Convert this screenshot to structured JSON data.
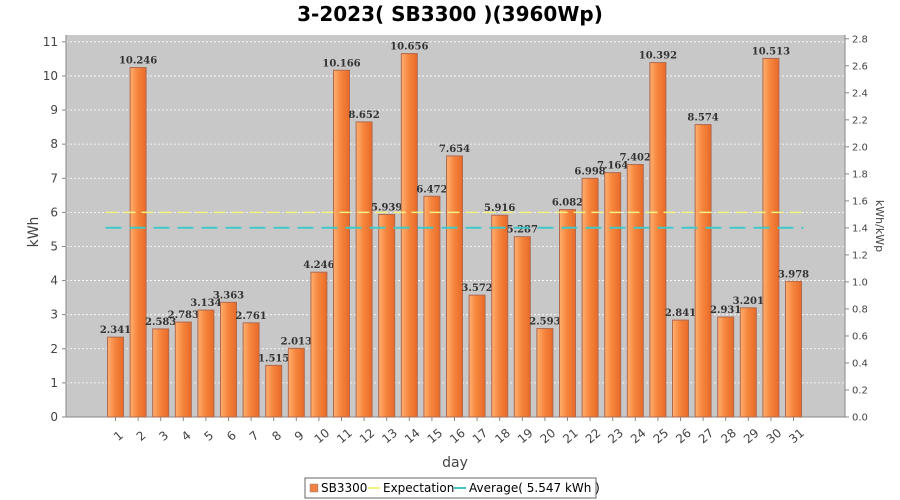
{
  "chart_data": {
    "type": "bar",
    "title": "3-2023( SB3300 )(3960Wp)",
    "xlabel": "day",
    "ylabel": "kWh",
    "y2label": "kWh/kWp",
    "ylim": [
      0,
      11.2
    ],
    "y2lim": [
      0,
      2.828
    ],
    "yticks": [
      "0",
      "1",
      "2",
      "3",
      "4",
      "5",
      "6",
      "7",
      "8",
      "9",
      "10",
      "11"
    ],
    "y2ticks": [
      "0.0",
      "0.2",
      "0.4",
      "0.6",
      "0.8",
      "1.0",
      "1.2",
      "1.4",
      "1.6",
      "1.8",
      "2.0",
      "2.2",
      "2.4",
      "2.6",
      "2.8"
    ],
    "grid": true,
    "categories": [
      "1",
      "2",
      "3",
      "4",
      "5",
      "6",
      "7",
      "8",
      "9",
      "10",
      "11",
      "12",
      "13",
      "14",
      "15",
      "16",
      "17",
      "18",
      "19",
      "20",
      "21",
      "22",
      "23",
      "24",
      "25",
      "26",
      "27",
      "28",
      "29",
      "30",
      "31"
    ],
    "series": [
      {
        "name": "SB3300",
        "type": "bar",
        "color": "#f08040",
        "values": [
          2.341,
          10.246,
          2.583,
          2.783,
          3.134,
          3.363,
          2.761,
          1.515,
          2.013,
          4.246,
          10.166,
          8.652,
          5.939,
          10.656,
          6.472,
          7.654,
          3.572,
          5.916,
          5.287,
          2.593,
          6.082,
          6.998,
          7.164,
          7.402,
          10.392,
          2.841,
          8.574,
          2.931,
          3.201,
          10.513,
          3.978
        ],
        "labels": [
          "2.341",
          "10.246",
          "2.583",
          "2.783",
          "3.134",
          "3.363",
          "2.761",
          "1.515",
          "2.013",
          "4.246",
          "10.166",
          "8.652",
          "5.939",
          "10.656",
          "6.472",
          "7.654",
          "3.572",
          "5.916",
          "5.287",
          "2.593",
          "6.082",
          "6.998",
          "7.164",
          "7.402",
          "10.392",
          "2.841",
          "8.574",
          "2.931",
          "3.201",
          "10.513",
          "3.978"
        ]
      },
      {
        "name": "Expectation",
        "type": "line",
        "color": "#f2f280",
        "value": 6.0
      },
      {
        "name": "Average( 5.547 kWh )",
        "type": "line",
        "color": "#40c8c8",
        "value": 5.547
      }
    ],
    "legend": "bottom"
  }
}
